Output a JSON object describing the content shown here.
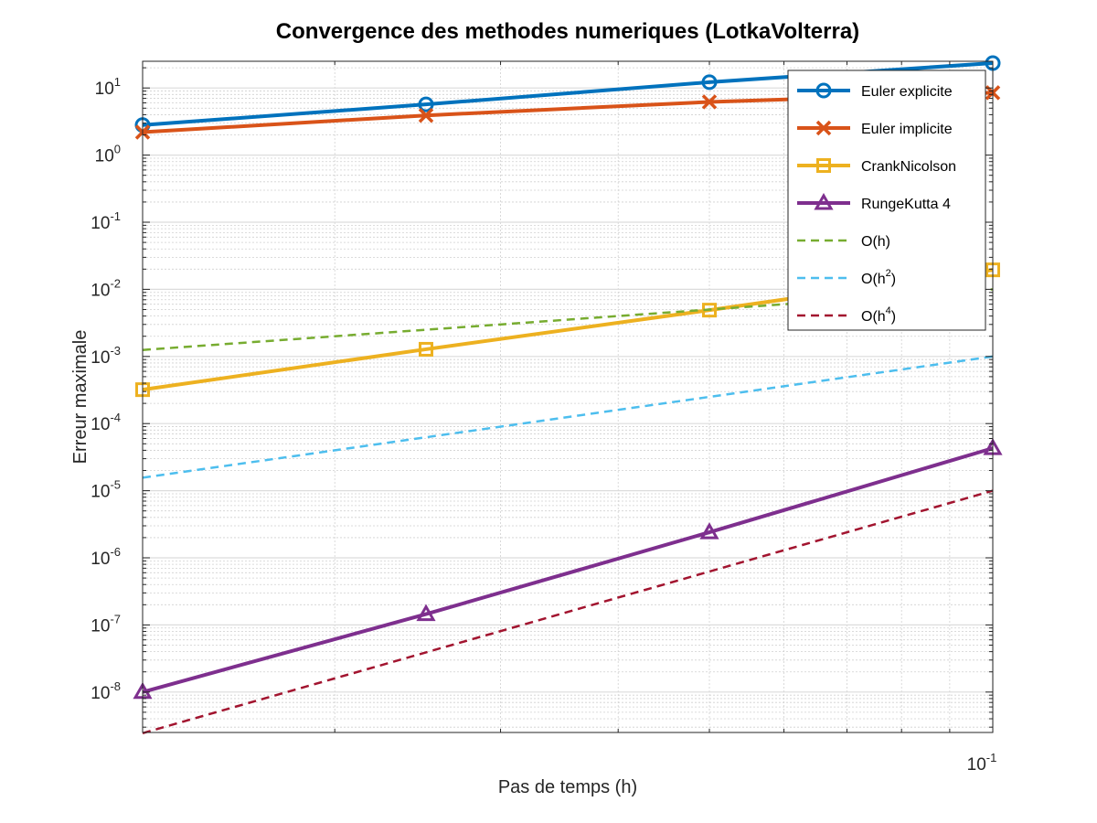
{
  "chart_data": {
    "type": "line",
    "title": "Convergence des methodes numeriques (LotkaVolterra)",
    "xlabel": "Pas de temps (h)",
    "ylabel": "Erreur maximale",
    "xscale": "log",
    "yscale": "log",
    "xlim": [
      0.0125,
      0.1
    ],
    "ylim": [
      2.5e-09,
      25
    ],
    "grid": true,
    "legend_position": "top-right",
    "x": [
      0.0125,
      0.025,
      0.05,
      0.1
    ],
    "x_tick_labels": [
      {
        "value": 0.1,
        "base": "10",
        "exp": "-1"
      }
    ],
    "y_tick_labels": [
      {
        "value": 1e-08,
        "base": "10",
        "exp": "-8"
      },
      {
        "value": 1e-07,
        "base": "10",
        "exp": "-7"
      },
      {
        "value": 1e-06,
        "base": "10",
        "exp": "-6"
      },
      {
        "value": 1e-05,
        "base": "10",
        "exp": "-5"
      },
      {
        "value": 0.0001,
        "base": "10",
        "exp": "-4"
      },
      {
        "value": 0.001,
        "base": "10",
        "exp": "-3"
      },
      {
        "value": 0.01,
        "base": "10",
        "exp": "-2"
      },
      {
        "value": 0.1,
        "base": "10",
        "exp": "-1"
      },
      {
        "value": 1,
        "base": "10",
        "exp": "0"
      },
      {
        "value": 10,
        "base": "10",
        "exp": "1"
      }
    ],
    "series": [
      {
        "name": "Euler explicite",
        "color": "#0072BD",
        "marker": "circle",
        "dash": "solid",
        "values": [
          2.8,
          5.7,
          12.2,
          23.5
        ]
      },
      {
        "name": "Euler implicite",
        "color": "#D95319",
        "marker": "x",
        "dash": "solid",
        "values": [
          2.2,
          3.9,
          6.2,
          8.5
        ]
      },
      {
        "name": "CrankNicolson",
        "color": "#EDB120",
        "marker": "square",
        "dash": "solid",
        "values": [
          0.00032,
          0.00128,
          0.0049,
          0.0195
        ]
      },
      {
        "name": "RungeKutta 4",
        "color": "#7E2F8E",
        "marker": "triangle",
        "dash": "solid",
        "values": [
          1e-08,
          1.45e-07,
          2.4e-06,
          4.3e-05
        ]
      },
      {
        "name": "O(h)",
        "name_base": "O(h)",
        "name_sup": "",
        "color": "#77AC30",
        "marker": "none",
        "dash": "dashed",
        "values": [
          0.00125,
          0.0025,
          0.005,
          0.01
        ]
      },
      {
        "name": "O(h^2)",
        "name_base": "O(h",
        "name_sup": "2",
        "name_tail": ")",
        "color": "#4DBEEE",
        "marker": "none",
        "dash": "dashed",
        "values": [
          1.5625e-05,
          6.25e-05,
          0.00025,
          0.001
        ]
      },
      {
        "name": "O(h^4)",
        "name_base": "O(h",
        "name_sup": "4",
        "name_tail": ")",
        "color": "#A2142F",
        "marker": "none",
        "dash": "dashed",
        "values": [
          2.44e-09,
          3.9e-08,
          6.25e-07,
          1e-05
        ]
      }
    ]
  }
}
